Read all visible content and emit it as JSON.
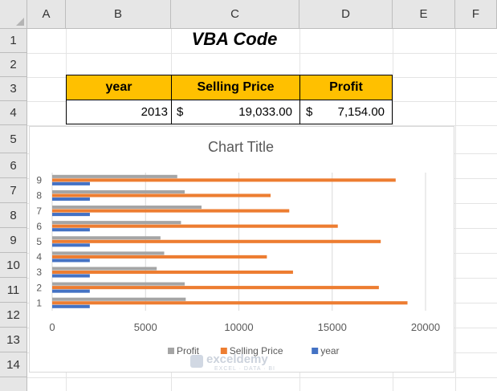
{
  "columns": [
    "A",
    "B",
    "C",
    "D",
    "E",
    "F"
  ],
  "rows": [
    "1",
    "2",
    "3",
    "4",
    "5",
    "6",
    "7",
    "8",
    "9",
    "10",
    "11",
    "12",
    "13",
    "14"
  ],
  "sheet_title": "VBA Code",
  "table": {
    "headers": [
      "year",
      "Selling Price",
      "Profit"
    ],
    "row": {
      "year": "2013",
      "price_currency": "$",
      "price": "19,033.00",
      "profit_currency": "$",
      "profit": "7,154.00"
    }
  },
  "chart_title": "Chart Title",
  "chart_data": {
    "type": "bar",
    "orientation": "horizontal",
    "title": "Chart Title",
    "categories": [
      "1",
      "2",
      "3",
      "4",
      "5",
      "6",
      "7",
      "8",
      "9"
    ],
    "series": [
      {
        "name": "year",
        "color": "#4472c4",
        "values": [
          2013,
          2014,
          2015,
          2016,
          2017,
          2018,
          2019,
          2020,
          2021
        ]
      },
      {
        "name": "Selling Price",
        "color": "#ed7d31",
        "values": [
          19033,
          17500,
          12900,
          11500,
          17600,
          15300,
          12700,
          11700,
          18400
        ]
      },
      {
        "name": "Profit",
        "color": "#a5a5a5",
        "values": [
          7154,
          7100,
          5600,
          6000,
          5800,
          6900,
          8000,
          7100,
          6700
        ]
      }
    ],
    "xlim": [
      0,
      20000
    ],
    "xticks": [
      "0",
      "5000",
      "10000",
      "15000",
      "20000"
    ],
    "gridlines": "vertical",
    "legend_position": "bottom",
    "legend_order": [
      "Profit",
      "Selling Price",
      "year"
    ]
  },
  "watermark": {
    "name": "exceldemy",
    "tagline": "EXCEL · DATA · BI"
  }
}
